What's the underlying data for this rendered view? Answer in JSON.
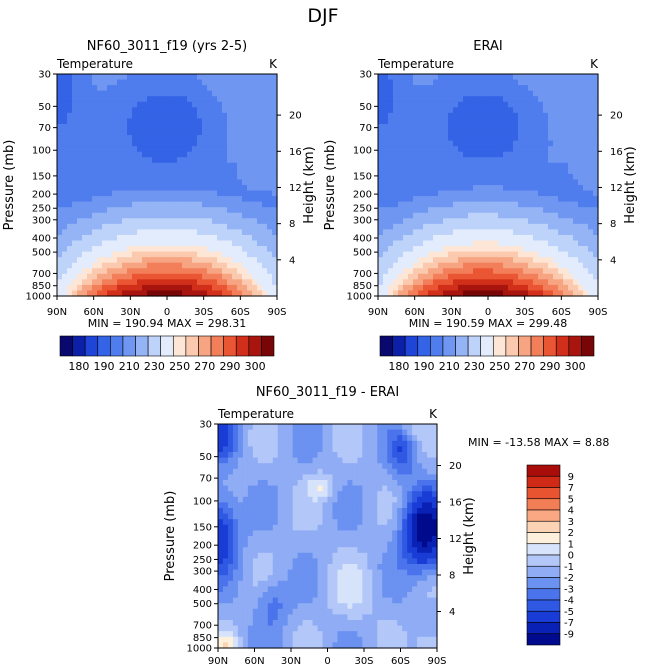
{
  "figure": {
    "title": "DJF",
    "min_label": "MIN",
    "max_label": "MAX"
  },
  "chart_data": [
    {
      "type": "heatmap",
      "title": "NF60_3011_f19 (yrs 2-5)",
      "subtitle": "Temperature",
      "units": "K",
      "xlabel": "",
      "ylabel": "Pressure (mb)",
      "y2label": "Height (km)",
      "x_ticks": [
        "90N",
        "60N",
        "30N",
        "0",
        "30S",
        "60S",
        "90S"
      ],
      "xlim": [
        90,
        -90
      ],
      "p_ticks": [
        30,
        50,
        70,
        100,
        150,
        200,
        250,
        300,
        400,
        500,
        700,
        850,
        1000
      ],
      "ylim": [
        1000,
        30
      ],
      "height_ticks": [
        4,
        8,
        12,
        16,
        20
      ],
      "min": "190.94",
      "max": "298.31",
      "colorbar_levels": [
        "180",
        "190",
        "210",
        "230",
        "250",
        "270",
        "290",
        "300"
      ],
      "field": "temperature_djf_model"
    },
    {
      "type": "heatmap",
      "title": "ERAI",
      "subtitle": "Temperature",
      "units": "K",
      "xlabel": "",
      "ylabel": "Pressure (mb)",
      "y2label": "Height (km)",
      "x_ticks": [
        "90N",
        "60N",
        "30N",
        "0",
        "30S",
        "60S",
        "90S"
      ],
      "xlim": [
        90,
        -90
      ],
      "p_ticks": [
        30,
        50,
        70,
        100,
        150,
        200,
        250,
        300,
        400,
        500,
        700,
        850,
        1000
      ],
      "ylim": [
        1000,
        30
      ],
      "height_ticks": [
        4,
        8,
        12,
        16,
        20
      ],
      "min": "190.59",
      "max": "299.48",
      "colorbar_levels": [
        "180",
        "190",
        "210",
        "230",
        "250",
        "270",
        "290",
        "300"
      ],
      "field": "temperature_djf_erai"
    },
    {
      "type": "heatmap",
      "title": "NF60_3011_f19 - ERAI",
      "subtitle": "Temperature",
      "units": "K",
      "xlabel": "",
      "ylabel": "Pressure (mb)",
      "y2label": "Height (km)",
      "x_ticks": [
        "90N",
        "60N",
        "30N",
        "0",
        "30S",
        "60S",
        "90S"
      ],
      "xlim": [
        90,
        -90
      ],
      "p_ticks": [
        30,
        50,
        70,
        100,
        150,
        200,
        250,
        300,
        400,
        500,
        700,
        850,
        1000
      ],
      "ylim": [
        1000,
        30
      ],
      "height_ticks": [
        4,
        8,
        12,
        16,
        20
      ],
      "min": "-13.58",
      "max": "8.88",
      "colorbar_levels": [
        "9",
        "7",
        "5",
        "4",
        "3",
        "2",
        "1",
        "0",
        "-1",
        "-2",
        "-3",
        "-4",
        "-5",
        "-7",
        "-9"
      ],
      "field": "temperature_difference"
    }
  ],
  "colors": {
    "temp_scale": [
      "#08086e",
      "#0c1fa8",
      "#1f44d8",
      "#3463e6",
      "#4f7ded",
      "#6f97f1",
      "#94b4f5",
      "#bed3f9",
      "#e2ecfc",
      "#fde6d5",
      "#fbc9ad",
      "#f7a482",
      "#f27e5a",
      "#ea5633",
      "#d12f1a",
      "#a8150f",
      "#780606"
    ],
    "diff_scale": [
      "#000a8c",
      "#0a21b5",
      "#1a3cd6",
      "#2f58e3",
      "#4a73ec",
      "#6b91f1",
      "#8facf5",
      "#b3c8f8",
      "#d6e3fb",
      "#fdf0dc",
      "#fcd3b4",
      "#f9a883",
      "#f27e55",
      "#e85330",
      "#cf2a16",
      "#a90d0a"
    ]
  }
}
